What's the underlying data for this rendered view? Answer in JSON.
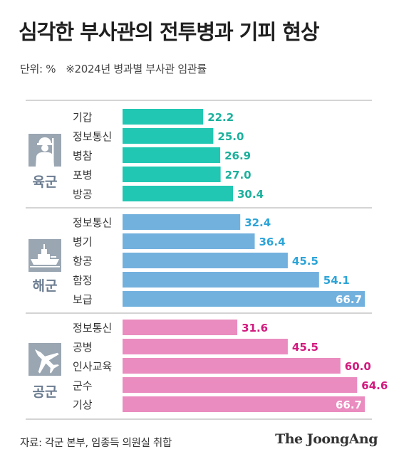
{
  "header": {
    "title": "심각한 부사관의 전투병과 기피 현상",
    "unit": "단위: %",
    "note": "※2024년 병과별 부사관 임관률"
  },
  "footer": {
    "source": "자료: 각군 본부, 임종득 의원실 취합",
    "brand": "The JoongAng"
  },
  "colors": {
    "army": "#21c7b2",
    "army_text": "#1bb09c",
    "navy": "#72b1de",
    "navy_text": "#2ca4d8",
    "airforce": "#ea8cbf",
    "airforce_text": "#d21a7e",
    "group_label": "#6c7d91",
    "icon": "#9aa6b2"
  },
  "chart_data": {
    "type": "bar",
    "orientation": "horizontal",
    "unit": "%",
    "xlim": [
      0,
      66.7
    ],
    "groups": [
      {
        "name": "육군",
        "icon": "soldier-icon",
        "categories": [
          "기갑",
          "정보통신",
          "병참",
          "포병",
          "방공"
        ],
        "values": [
          22.2,
          25.0,
          26.9,
          27.0,
          30.4
        ]
      },
      {
        "name": "해군",
        "icon": "warship-icon",
        "categories": [
          "정보통신",
          "병기",
          "항공",
          "함정",
          "보급"
        ],
        "values": [
          32.4,
          36.4,
          45.5,
          54.1,
          66.7
        ]
      },
      {
        "name": "공군",
        "icon": "fighter-jet-icon",
        "categories": [
          "정보통신",
          "공병",
          "인사교육",
          "군수",
          "기상"
        ],
        "values": [
          31.6,
          45.5,
          60.0,
          64.6,
          66.7
        ]
      }
    ]
  }
}
